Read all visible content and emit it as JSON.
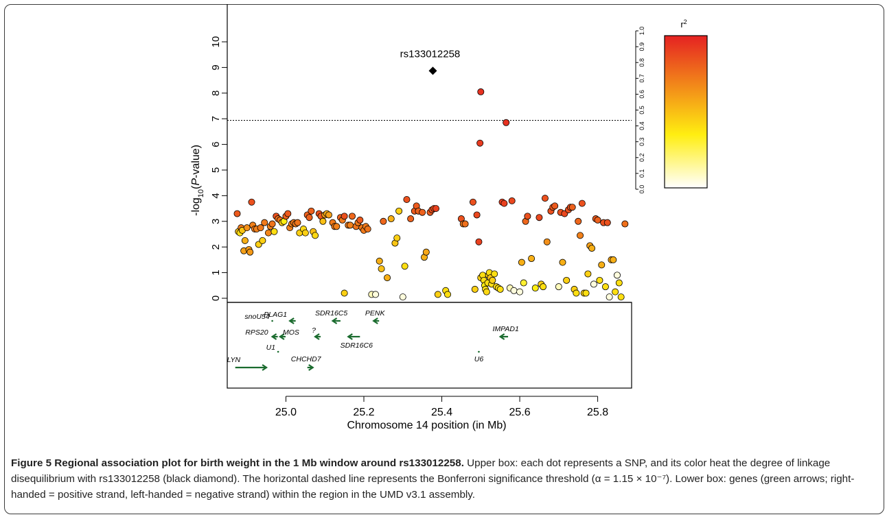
{
  "chart_data": {
    "type": "scatter",
    "xlabel": "Chromosome 14 position (in Mb)",
    "ylabel_parts": {
      "pre": "-log",
      "sub": "10",
      "mid": "(",
      "ital": "P",
      "post": "-value)"
    },
    "xlim": [
      24.86,
      25.88
    ],
    "ylim": [
      0,
      10
    ],
    "x_ticks": [
      "25.0",
      "25.2",
      "25.4",
      "25.6",
      "25.8"
    ],
    "x_tick_values": [
      25.0,
      25.2,
      25.4,
      25.6,
      25.8
    ],
    "y_ticks": [
      "0",
      "1",
      "2",
      "3",
      "4",
      "5",
      "6",
      "7",
      "8",
      "9",
      "10"
    ],
    "threshold": 6.94,
    "lead_snp": {
      "label": "rs133012258",
      "x": 25.377,
      "y": 8.87,
      "color": "#000000"
    },
    "colorbar": {
      "title_base": "r",
      "title_sup": "2",
      "ticks": [
        "0.0",
        "0.1",
        "0.2",
        "0.3",
        "0.4",
        "0.5",
        "0.6",
        "0.7",
        "0.8",
        "0.9",
        "1.0"
      ],
      "colors": [
        "#ffffff",
        "#ffee11",
        "#e52222"
      ]
    },
    "points": [
      [
        24.875,
        3.3,
        0.82
      ],
      [
        24.878,
        2.6,
        0.5
      ],
      [
        24.882,
        2.55,
        0.4
      ],
      [
        24.885,
        2.75,
        0.72
      ],
      [
        24.888,
        2.65,
        0.48
      ],
      [
        24.892,
        1.85,
        0.6
      ],
      [
        24.895,
        2.25,
        0.55
      ],
      [
        24.9,
        2.75,
        0.65
      ],
      [
        24.905,
        1.9,
        0.62
      ],
      [
        24.908,
        1.8,
        0.62
      ],
      [
        24.912,
        3.75,
        0.85
      ],
      [
        24.915,
        2.85,
        0.7
      ],
      [
        24.92,
        2.7,
        0.72
      ],
      [
        24.925,
        2.7,
        0.7
      ],
      [
        24.93,
        2.1,
        0.45
      ],
      [
        24.935,
        2.75,
        0.72
      ],
      [
        24.94,
        2.25,
        0.45
      ],
      [
        24.945,
        2.95,
        0.72
      ],
      [
        24.955,
        2.55,
        0.68
      ],
      [
        24.96,
        2.8,
        0.7
      ],
      [
        24.965,
        2.9,
        0.74
      ],
      [
        24.97,
        2.6,
        0.4
      ],
      [
        24.975,
        3.2,
        0.85
      ],
      [
        24.98,
        3.1,
        0.75
      ],
      [
        24.985,
        3.05,
        0.74
      ],
      [
        24.99,
        2.95,
        0.45
      ],
      [
        24.995,
        3.0,
        0.35
      ],
      [
        25.0,
        3.2,
        0.8
      ],
      [
        25.005,
        3.3,
        0.82
      ],
      [
        25.01,
        2.75,
        0.7
      ],
      [
        25.015,
        2.9,
        0.7
      ],
      [
        25.02,
        2.95,
        0.72
      ],
      [
        25.025,
        2.9,
        0.72
      ],
      [
        25.03,
        2.95,
        0.74
      ],
      [
        25.035,
        2.55,
        0.45
      ],
      [
        25.045,
        2.7,
        0.42
      ],
      [
        25.05,
        2.55,
        0.45
      ],
      [
        25.055,
        3.25,
        0.8
      ],
      [
        25.06,
        3.15,
        0.8
      ],
      [
        25.065,
        3.4,
        0.8
      ],
      [
        25.07,
        2.6,
        0.5
      ],
      [
        25.075,
        2.45,
        0.42
      ],
      [
        25.085,
        3.3,
        0.85
      ],
      [
        25.09,
        3.2,
        0.82
      ],
      [
        25.095,
        3.0,
        0.5
      ],
      [
        25.1,
        3.25,
        0.6
      ],
      [
        25.105,
        3.3,
        0.55
      ],
      [
        25.11,
        3.25,
        0.6
      ],
      [
        25.12,
        2.95,
        0.72
      ],
      [
        25.125,
        2.8,
        0.72
      ],
      [
        25.13,
        2.8,
        0.7
      ],
      [
        25.14,
        3.15,
        0.8
      ],
      [
        25.145,
        3.05,
        0.72
      ],
      [
        25.15,
        3.2,
        0.85
      ],
      [
        25.16,
        2.85,
        0.72
      ],
      [
        25.165,
        2.85,
        0.7
      ],
      [
        25.17,
        3.2,
        0.78
      ],
      [
        25.18,
        2.8,
        0.74
      ],
      [
        25.185,
        2.95,
        0.72
      ],
      [
        25.19,
        3.05,
        0.82
      ],
      [
        25.195,
        2.75,
        0.72
      ],
      [
        25.2,
        2.65,
        0.72
      ],
      [
        25.205,
        2.8,
        0.72
      ],
      [
        25.21,
        2.7,
        0.74
      ],
      [
        25.15,
        0.2,
        0.45
      ],
      [
        25.22,
        0.15,
        0.1
      ],
      [
        25.23,
        0.15,
        0.05
      ],
      [
        25.24,
        1.45,
        0.55
      ],
      [
        25.245,
        1.15,
        0.5
      ],
      [
        25.25,
        3.0,
        0.78
      ],
      [
        25.26,
        0.8,
        0.55
      ],
      [
        25.27,
        3.1,
        0.55
      ],
      [
        25.28,
        2.15,
        0.48
      ],
      [
        25.285,
        2.35,
        0.45
      ],
      [
        25.29,
        3.4,
        0.45
      ],
      [
        25.3,
        0.05,
        0.05
      ],
      [
        25.305,
        1.25,
        0.4
      ],
      [
        25.31,
        3.85,
        0.85
      ],
      [
        25.32,
        3.1,
        0.8
      ],
      [
        25.33,
        3.4,
        0.82
      ],
      [
        25.335,
        3.6,
        0.82
      ],
      [
        25.34,
        3.4,
        0.8
      ],
      [
        25.35,
        3.35,
        0.8
      ],
      [
        25.355,
        1.6,
        0.55
      ],
      [
        25.36,
        1.8,
        0.58
      ],
      [
        25.37,
        3.35,
        0.82
      ],
      [
        25.375,
        3.45,
        0.85
      ],
      [
        25.38,
        3.5,
        0.85
      ],
      [
        25.385,
        3.5,
        0.9
      ],
      [
        25.39,
        0.15,
        0.45
      ],
      [
        25.41,
        0.3,
        0.4
      ],
      [
        25.415,
        0.15,
        0.4
      ],
      [
        25.45,
        3.1,
        0.85
      ],
      [
        25.455,
        2.9,
        0.72
      ],
      [
        25.46,
        2.9,
        0.75
      ],
      [
        25.48,
        3.75,
        0.85
      ],
      [
        25.485,
        0.35,
        0.45
      ],
      [
        25.49,
        3.25,
        0.88
      ],
      [
        25.495,
        2.2,
        0.9
      ],
      [
        25.498,
        6.05,
        0.92
      ],
      [
        25.5,
        8.05,
        0.95
      ],
      [
        25.5,
        0.8,
        0.45
      ],
      [
        25.505,
        0.9,
        0.4
      ],
      [
        25.508,
        0.7,
        0.4
      ],
      [
        25.51,
        0.5,
        0.35
      ],
      [
        25.512,
        0.35,
        0.4
      ],
      [
        25.515,
        0.25,
        0.42
      ],
      [
        25.518,
        0.6,
        0.4
      ],
      [
        25.52,
        0.9,
        0.45
      ],
      [
        25.522,
        1.0,
        0.4
      ],
      [
        25.525,
        0.8,
        0.48
      ],
      [
        25.528,
        0.55,
        0.4
      ],
      [
        25.53,
        0.7,
        0.45
      ],
      [
        25.535,
        0.95,
        0.4
      ],
      [
        25.54,
        0.45,
        0.42
      ],
      [
        25.545,
        0.4,
        0.4
      ],
      [
        25.55,
        0.35,
        0.4
      ],
      [
        25.555,
        3.75,
        0.9
      ],
      [
        25.56,
        3.7,
        0.9
      ],
      [
        25.565,
        6.85,
        0.95
      ],
      [
        25.58,
        3.8,
        0.88
      ],
      [
        25.575,
        0.4,
        0.1
      ],
      [
        25.585,
        0.3,
        0.05
      ],
      [
        25.6,
        0.25,
        0.05
      ],
      [
        25.605,
        1.4,
        0.55
      ],
      [
        25.61,
        0.6,
        0.3
      ],
      [
        25.615,
        3.0,
        0.78
      ],
      [
        25.62,
        3.2,
        0.85
      ],
      [
        25.63,
        1.55,
        0.55
      ],
      [
        25.64,
        0.4,
        0.35
      ],
      [
        25.65,
        3.15,
        0.88
      ],
      [
        25.655,
        0.55,
        0.45
      ],
      [
        25.66,
        0.45,
        0.4
      ],
      [
        25.665,
        3.9,
        0.85
      ],
      [
        25.67,
        2.2,
        0.65
      ],
      [
        25.68,
        3.4,
        0.85
      ],
      [
        25.685,
        3.55,
        0.82
      ],
      [
        25.69,
        3.6,
        0.82
      ],
      [
        25.7,
        0.45,
        0.1
      ],
      [
        25.705,
        3.35,
        0.85
      ],
      [
        25.71,
        1.4,
        0.55
      ],
      [
        25.715,
        3.3,
        0.88
      ],
      [
        25.72,
        0.7,
        0.45
      ],
      [
        25.725,
        3.45,
        0.85
      ],
      [
        25.73,
        3.55,
        0.85
      ],
      [
        25.735,
        3.55,
        0.8
      ],
      [
        25.74,
        0.35,
        0.45
      ],
      [
        25.745,
        0.2,
        0.4
      ],
      [
        25.75,
        3.0,
        0.78
      ],
      [
        25.755,
        2.45,
        0.7
      ],
      [
        25.76,
        3.7,
        0.85
      ],
      [
        25.765,
        0.2,
        0.45
      ],
      [
        25.77,
        0.2,
        0.4
      ],
      [
        25.775,
        0.95,
        0.45
      ],
      [
        25.78,
        2.05,
        0.6
      ],
      [
        25.785,
        1.95,
        0.55
      ],
      [
        25.79,
        0.55,
        0.05
      ],
      [
        25.795,
        3.1,
        0.82
      ],
      [
        25.8,
        3.05,
        0.8
      ],
      [
        25.805,
        0.7,
        0.4
      ],
      [
        25.81,
        1.3,
        0.55
      ],
      [
        25.815,
        2.95,
        0.85
      ],
      [
        25.82,
        0.45,
        0.4
      ],
      [
        25.825,
        2.95,
        0.85
      ],
      [
        25.83,
        0.05,
        0.05
      ],
      [
        25.835,
        1.5,
        0.58
      ],
      [
        25.84,
        1.5,
        0.55
      ],
      [
        25.845,
        0.25,
        0.4
      ],
      [
        25.85,
        0.9,
        0.05
      ],
      [
        25.855,
        0.6,
        0.4
      ],
      [
        25.86,
        0.05,
        0.4
      ],
      [
        25.87,
        2.9,
        0.75
      ]
    ],
    "genes": [
      {
        "name": "snoU54",
        "x": 24.965,
        "row": 0,
        "dir": "dot",
        "len": 0
      },
      {
        "name": "PLAG1",
        "x": 25.01,
        "row": 0,
        "dir": "left",
        "len": 0.015
      },
      {
        "name": "SDR16C5",
        "x": 25.12,
        "row": 0,
        "dir": "left",
        "len": 0.02
      },
      {
        "name": "PENK",
        "x": 25.225,
        "row": 0,
        "dir": "left",
        "len": 0.012
      },
      {
        "name": "RPS20",
        "x": 24.965,
        "row": 1,
        "dir": "left",
        "len": 0.008
      },
      {
        "name": "MOS",
        "x": 24.985,
        "row": 1,
        "dir": "left",
        "len": 0.01
      },
      {
        "name": "?",
        "x": 25.075,
        "row": 1,
        "dir": "left",
        "len": 0.01
      },
      {
        "name": "SDR16C6",
        "x": 25.16,
        "row": 1,
        "dir": "left",
        "len": 0.03
      },
      {
        "name": "IMPAD1",
        "x": 25.55,
        "row": 1,
        "dir": "left",
        "len": 0.02
      },
      {
        "name": "U1",
        "x": 24.98,
        "row": 2,
        "dir": "dot",
        "len": 0
      },
      {
        "name": "U6",
        "x": 25.495,
        "row": 2,
        "dir": "dot",
        "len": 0
      },
      {
        "name": "LYN",
        "x": 24.87,
        "row": 3,
        "dir": "right",
        "len": 0.08
      },
      {
        "name": "CHCHD7",
        "x": 25.055,
        "row": 3,
        "dir": "right",
        "len": 0.01
      }
    ]
  },
  "caption": {
    "bold": "Figure 5 Regional association plot for birth weight in the 1 Mb window around rs133012258.",
    "text": " Upper box: each dot represents a SNP, and its color heat the degree of linkage disequilibrium with rs133012258 (black diamond). The horizontal dashed line represents the Bonferroni significance threshold (α = 1.15 × 10⁻⁷). Lower box: genes (green arrows; right-handed = positive strand, left-handed = negative strand) within the region in the UMD v3.1 assembly."
  }
}
